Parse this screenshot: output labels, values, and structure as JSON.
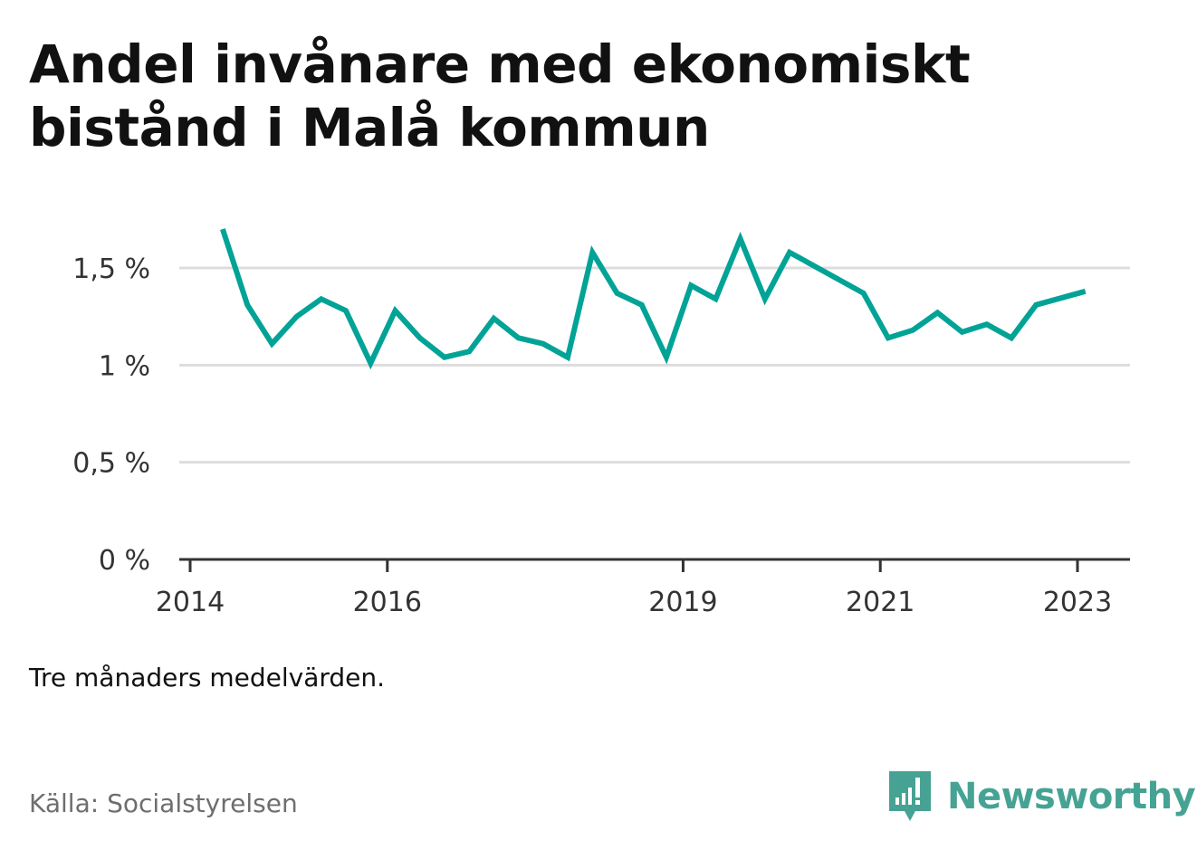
{
  "title_lines": [
    "Andel invånare med ekonomiskt",
    "bistånd i Malå kommun"
  ],
  "note": "Tre månaders medelvärden.",
  "source": "Källa: Socialstyrelsen",
  "brand": {
    "name": "Newsworthy",
    "icon": "newsworthy-logo-icon",
    "color": "#46a394"
  },
  "colors": {
    "line": "#00a396",
    "grid": "#dddddd",
    "axis": "#333333",
    "text": "#111111",
    "muted": "#6e6e6e"
  },
  "chart_data": {
    "type": "line",
    "title": "Andel invånare med ekonomiskt bistånd i Malå kommun",
    "xlabel": "",
    "ylabel": "",
    "ylim": [
      0,
      1.75
    ],
    "xlim": [
      2014,
      2023.4
    ],
    "grid": true,
    "legend": "none",
    "y_ticks": [
      {
        "value": 0,
        "label": "0 %"
      },
      {
        "value": 0.5,
        "label": "0,5 %"
      },
      {
        "value": 1,
        "label": "1 %"
      },
      {
        "value": 1.5,
        "label": "1,5 %"
      }
    ],
    "x_ticks": [
      {
        "value": 2014,
        "label": "2014"
      },
      {
        "value": 2016,
        "label": "2016"
      },
      {
        "value": 2019,
        "label": "2019"
      },
      {
        "value": 2021,
        "label": "2021"
      },
      {
        "value": 2023,
        "label": "2023"
      }
    ],
    "series": [
      {
        "x": [
          2014.33,
          2014.58,
          2014.83,
          2015.08,
          2015.33,
          2015.58,
          2015.83,
          2016.08,
          2016.33,
          2016.58,
          2016.83,
          2017.08,
          2017.33,
          2017.58,
          2017.83,
          2018.08,
          2018.33,
          2018.58,
          2018.83,
          2019.08,
          2019.33,
          2019.58,
          2019.83,
          2020.08,
          2020.83,
          2021.08,
          2021.33,
          2021.58,
          2021.83,
          2022.08,
          2022.33,
          2022.58,
          2023.08
        ],
        "values": [
          1.7,
          1.31,
          1.11,
          1.25,
          1.34,
          1.28,
          1.01,
          1.28,
          1.14,
          1.04,
          1.07,
          1.24,
          1.14,
          1.11,
          1.04,
          1.58,
          1.37,
          1.31,
          1.04,
          1.41,
          1.34,
          1.65,
          1.34,
          1.58,
          1.37,
          1.14,
          1.18,
          1.27,
          1.17,
          1.21,
          1.14,
          1.31,
          1.38
        ]
      }
    ]
  }
}
